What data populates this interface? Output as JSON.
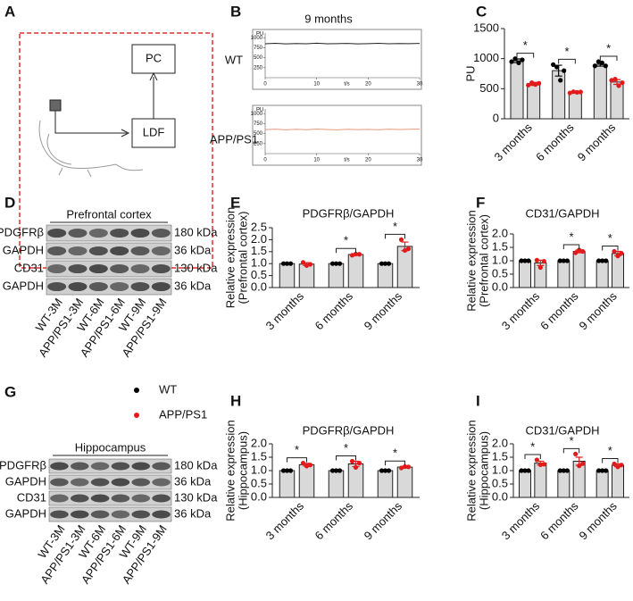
{
  "panel_labels": [
    "A",
    "B",
    "C",
    "D",
    "E",
    "F",
    "G",
    "H",
    "I"
  ],
  "diagram": {
    "pc": "PC",
    "ldf": "LDF"
  },
  "blots": [
    {
      "region": "Prefrontal cortex",
      "rows": [
        "PDGFRβ",
        "GAPDH",
        "CD31",
        "GAPDH"
      ],
      "sizes": [
        "180 kDa",
        "36 kDa",
        "130 kDa",
        "36 kDa"
      ],
      "lanes": [
        "WT-3M",
        "APP/PS1-3M",
        "WT-6M",
        "APP/PS1-6M",
        "WT-9M",
        "APP/PS1-9M"
      ]
    },
    {
      "region": "Hippocampus",
      "rows": [
        "PDGFRβ",
        "GAPDH",
        "CD31",
        "GAPDH"
      ],
      "sizes": [
        "180 kDa",
        "36 kDa",
        "130 kDa",
        "36 kDa"
      ],
      "lanes": [
        "WT-3M",
        "APP/PS1-3M",
        "WT-6M",
        "APP/PS1-6M",
        "WT-9M",
        "APP/PS1-9M"
      ]
    }
  ],
  "chart_data": [
    {
      "type": "line",
      "title": "9 months",
      "label": "WT",
      "ylabel": "PU",
      "xlabel": "t/s",
      "color": "#222222",
      "x": [
        0,
        2,
        4,
        6,
        8,
        10,
        12,
        14,
        16,
        18,
        20,
        22,
        24,
        26,
        28,
        30
      ],
      "values": [
        850,
        860,
        845,
        855,
        850,
        862,
        848,
        852,
        858,
        846,
        853,
        860,
        849,
        855,
        851,
        857
      ],
      "xlim": [
        0,
        30
      ],
      "xticks": [
        0,
        10,
        20,
        30
      ],
      "ylim": [
        0,
        1050
      ],
      "yticks": [
        1000,
        750,
        500,
        250
      ]
    },
    {
      "type": "line",
      "label": "APP/PS1",
      "ylabel": "PU",
      "xlabel": "t/s",
      "color": "#e39a7c",
      "x": [
        0,
        2,
        4,
        6,
        8,
        10,
        12,
        14,
        16,
        18,
        20,
        22,
        24,
        26,
        28,
        30
      ],
      "values": [
        600,
        612,
        595,
        608,
        598,
        615,
        602,
        594,
        610,
        600,
        606,
        597,
        612,
        603,
        609,
        615
      ],
      "xlim": [
        0,
        30
      ],
      "xticks": [
        0,
        10,
        20,
        30
      ],
      "ylim": [
        0,
        1050
      ],
      "yticks": [
        1000,
        750,
        500,
        250
      ]
    },
    {
      "type": "bar",
      "ylabel": [
        "PU"
      ],
      "categories": [
        "3 months",
        "6 months",
        "9 months"
      ],
      "series": [
        {
          "name": "WT",
          "color": "#000000",
          "values": [
            965,
            800,
            905
          ],
          "errors": [
            30,
            90,
            30
          ],
          "points": [
            [
              950,
              1000,
              930,
              980
            ],
            [
              900,
              860,
              640,
              800
            ],
            [
              880,
              950,
              930,
              880
            ]
          ]
        },
        {
          "name": "APP/PS1",
          "color": "#e31a1c",
          "values": [
            580,
            440,
            612
          ],
          "errors": [
            25,
            8,
            40
          ],
          "points": [
            [
              560,
              600,
              570,
              590
            ],
            [
              430,
              450,
              440,
              445
            ],
            [
              640,
              660,
              550,
              600
            ]
          ]
        }
      ],
      "significance": [
        "*",
        "*",
        "*"
      ],
      "ylim": [
        0,
        1500
      ],
      "yticks": [
        0,
        500,
        1000,
        1500
      ]
    },
    {
      "type": "bar",
      "title": "PDGFRβ/GAPDH",
      "ylabel": [
        "Relative expression",
        "(Prefrontal cortex)"
      ],
      "categories": [
        "3 months",
        "6 months",
        "9 months"
      ],
      "series": [
        {
          "name": "WT",
          "color": "#000000",
          "values": [
            1,
            1,
            1
          ],
          "errors": [
            0,
            0,
            0
          ],
          "points": [
            [
              1,
              1,
              1
            ],
            [
              1,
              1,
              1
            ],
            [
              1,
              1,
              1
            ]
          ]
        },
        {
          "name": "APP/PS1",
          "color": "#e31a1c",
          "values": [
            0.98,
            1.38,
            1.72
          ],
          "errors": [
            0.06,
            0.03,
            0.18
          ],
          "points": [
            [
              1.05,
              0.92,
              0.97
            ],
            [
              1.35,
              1.4,
              1.39
            ],
            [
              2.0,
              1.55,
              1.62
            ]
          ]
        }
      ],
      "significance": [
        null,
        "*",
        "*"
      ],
      "ylim": [
        0,
        2.5
      ],
      "yticks": [
        {
          "value": 0,
          "label": "0.0"
        },
        0.5,
        {
          "value": 1,
          "label": "1.0"
        },
        1.5,
        {
          "value": 2,
          "label": "2.0"
        },
        2.5
      ]
    },
    {
      "type": "bar",
      "title": "CD31/GAPDH",
      "ylabel": [
        "Relative expression",
        "(Prefrontal cortex)"
      ],
      "categories": [
        "3 months",
        "6 months",
        "9 months"
      ],
      "series": [
        {
          "name": "WT",
          "color": "#000000",
          "values": [
            1,
            1,
            1
          ],
          "errors": [
            0,
            0,
            0
          ],
          "points": [
            [
              1,
              1,
              1
            ],
            [
              1,
              1,
              1
            ],
            [
              1,
              1,
              1
            ]
          ]
        },
        {
          "name": "APP/PS1",
          "color": "#e31a1c",
          "values": [
            0.92,
            1.35,
            1.27
          ],
          "errors": [
            0.1,
            0.05,
            0.08
          ],
          "points": [
            [
              1.02,
              0.75,
              0.98
            ],
            [
              1.3,
              1.4,
              1.35
            ],
            [
              1.35,
              1.18,
              1.28
            ]
          ]
        }
      ],
      "significance": [
        null,
        "*",
        "*"
      ],
      "ylim": [
        0,
        2
      ],
      "yticks": [
        {
          "value": 0,
          "label": "0.0"
        },
        0.5,
        {
          "value": 1,
          "label": "1.0"
        },
        1.5,
        {
          "value": 2,
          "label": "2.0"
        }
      ]
    },
    {
      "type": "bar",
      "title": "PDGFRβ/GAPDH",
      "ylabel": [
        "Relative expression",
        "(Hippocampus)"
      ],
      "categories": [
        "3 months",
        "6 months",
        "9 months"
      ],
      "series": [
        {
          "name": "WT",
          "color": "#000000",
          "values": [
            1,
            1,
            1
          ],
          "errors": [
            0,
            0,
            0
          ],
          "points": [
            [
              1,
              1,
              1
            ],
            [
              1,
              1,
              1
            ],
            [
              1,
              1,
              1
            ]
          ]
        },
        {
          "name": "APP/PS1",
          "color": "#e31a1c",
          "values": [
            1.22,
            1.25,
            1.13
          ],
          "errors": [
            0.05,
            0.1,
            0.03
          ],
          "points": [
            [
              1.28,
              1.17,
              1.21
            ],
            [
              1.35,
              1.12,
              1.28
            ],
            [
              1.1,
              1.15,
              1.14
            ]
          ]
        }
      ],
      "significance": [
        "*",
        "*",
        "*"
      ],
      "ylim": [
        0,
        2
      ],
      "yticks": [
        {
          "value": 0,
          "label": "0.0"
        },
        0.5,
        {
          "value": 1,
          "label": "1.0"
        },
        1.5,
        {
          "value": 2,
          "label": "2.0"
        }
      ]
    },
    {
      "type": "bar",
      "title": "CD31/GAPDH",
      "ylabel": [
        "Relative expression",
        "(Hippocampus)"
      ],
      "categories": [
        "3 months",
        "6 months",
        "9 months"
      ],
      "series": [
        {
          "name": "WT",
          "color": "#000000",
          "values": [
            1,
            1,
            1
          ],
          "errors": [
            0,
            0,
            0
          ],
          "points": [
            [
              1,
              1,
              1
            ],
            [
              1,
              1,
              1
            ],
            [
              1,
              1,
              1
            ]
          ]
        },
        {
          "name": "APP/PS1",
          "color": "#e31a1c",
          "values": [
            1.28,
            1.35,
            1.2
          ],
          "errors": [
            0.07,
            0.15,
            0.05
          ],
          "points": [
            [
              1.4,
              1.22,
              1.24
            ],
            [
              1.62,
              1.18,
              1.26
            ],
            [
              1.25,
              1.14,
              1.21
            ]
          ]
        }
      ],
      "significance": [
        "*",
        "*",
        "*"
      ],
      "ylim": [
        0,
        2
      ],
      "yticks": [
        {
          "value": 0,
          "label": "0.0"
        },
        0.5,
        {
          "value": 1,
          "label": "1.0"
        },
        1.5,
        {
          "value": 2,
          "label": "2.0"
        }
      ]
    }
  ]
}
